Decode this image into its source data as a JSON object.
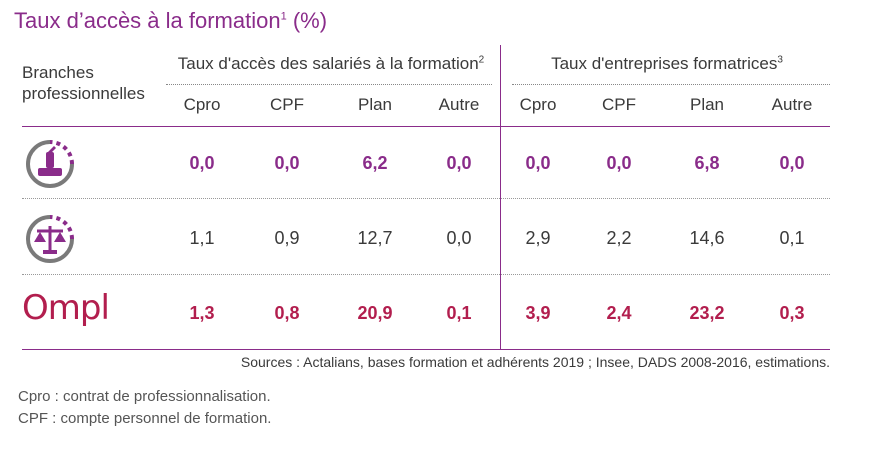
{
  "title": {
    "main": "Taux d’accès à la formation",
    "sup": "1",
    "suffix": " (%)"
  },
  "header": {
    "branches_line1": "Branches",
    "branches_line2": "professionnelles",
    "group1_label": "Taux d'accès des salariés à la formation",
    "group1_sup": "2",
    "group2_label": "Taux d'entreprises formatrices",
    "group2_sup": "3",
    "columns": [
      "Cpro",
      "CPF",
      "Plan",
      "Autre",
      "Cpro",
      "CPF",
      "Plan",
      "Autre"
    ]
  },
  "rows": [
    {
      "branch_icon": "cosmetics-branch-icon",
      "values": [
        "0,0",
        "0,0",
        "6,2",
        "0,0",
        "0,0",
        "0,0",
        "6,8",
        "0,0"
      ]
    },
    {
      "branch_icon": "justice-scale-branch-icon",
      "values": [
        "1,1",
        "0,9",
        "12,7",
        "0,0",
        "2,9",
        "2,2",
        "14,6",
        "0,1"
      ]
    },
    {
      "branch_logo_text": "Ompl",
      "values": [
        "1,3",
        "0,8",
        "20,9",
        "0,1",
        "3,9",
        "2,4",
        "23,2",
        "0,3"
      ]
    }
  ],
  "sources": "Sources : Actalians, bases formation et adhérents 2019 ; Insee, DADS 2008-2016, estimations.",
  "footnotes": [
    "Cpro : contrat de professionnalisation.",
    "CPF : compte personnel de formation."
  ],
  "colors": {
    "accent": "#8a2c8a",
    "ompl": "#b21e4e",
    "icon_grey": "#7a7a7a"
  }
}
